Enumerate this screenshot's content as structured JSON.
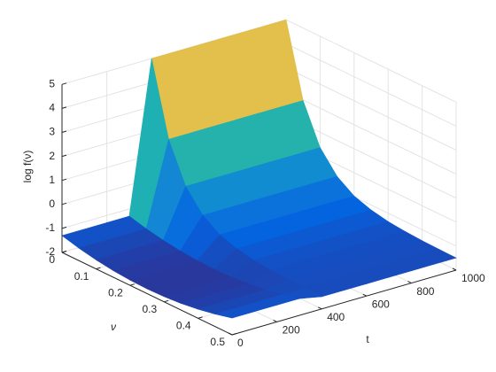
{
  "chart_data": {
    "type": "surface",
    "xlabel": "t",
    "ylabel": "ν",
    "zlabel": "log f(ν)",
    "x": [
      0,
      100,
      200,
      300,
      400,
      500,
      600,
      700,
      800,
      900,
      1000
    ],
    "y": [
      0,
      0.05,
      0.1,
      0.15,
      0.2,
      0.25,
      0.3,
      0.35,
      0.4,
      0.45,
      0.5
    ],
    "z": [
      [
        -1.3,
        -1.48,
        -1.62,
        -1.72,
        -1.78,
        -1.8,
        -1.78,
        -1.72,
        -1.62,
        -1.48,
        -1.3
      ],
      [
        -1.3,
        -1.48,
        -1.62,
        -1.72,
        -1.78,
        -1.8,
        -1.78,
        -1.72,
        -1.62,
        -1.48,
        -1.3
      ],
      [
        -1.3,
        -1.48,
        -1.62,
        -1.72,
        -1.78,
        -1.8,
        -1.78,
        -1.72,
        -1.62,
        -1.48,
        -1.3
      ],
      [
        -1.3,
        -1.48,
        -1.62,
        -1.72,
        -1.78,
        -1.8,
        -1.78,
        -1.72,
        -1.62,
        -1.48,
        -1.3
      ],
      [
        5,
        1.98,
        0.36,
        -0.5,
        -0.97,
        -1.21,
        -1.35,
        -1.42,
        -1.46,
        -1.48,
        -1.49
      ],
      [
        5,
        1.98,
        0.36,
        -0.5,
        -0.97,
        -1.21,
        -1.35,
        -1.42,
        -1.46,
        -1.48,
        -1.49
      ],
      [
        5,
        1.98,
        0.36,
        -0.5,
        -0.97,
        -1.21,
        -1.35,
        -1.42,
        -1.46,
        -1.48,
        -1.49
      ],
      [
        5,
        1.98,
        0.36,
        -0.5,
        -0.97,
        -1.21,
        -1.35,
        -1.42,
        -1.46,
        -1.48,
        -1.49
      ],
      [
        5,
        1.98,
        0.36,
        -0.5,
        -0.97,
        -1.21,
        -1.35,
        -1.42,
        -1.46,
        -1.48,
        -1.49
      ],
      [
        5,
        1.98,
        0.36,
        -0.5,
        -0.97,
        -1.21,
        -1.35,
        -1.42,
        -1.46,
        -1.48,
        -1.49
      ],
      [
        5,
        1.98,
        0.36,
        -0.5,
        -0.97,
        -1.21,
        -1.35,
        -1.42,
        -1.46,
        -1.48,
        -1.49
      ]
    ],
    "xlim": [
      0,
      1000
    ],
    "xticks": [
      0,
      200,
      400,
      600,
      800,
      1000
    ],
    "ylim": [
      0,
      0.5
    ],
    "yticks": [
      0,
      0.1,
      0.2,
      0.3,
      0.4,
      0.5
    ],
    "zlim": [
      -2,
      5
    ],
    "zticks": [
      -2,
      -1,
      0,
      1,
      2,
      3,
      4,
      5
    ],
    "grid": true,
    "colormap": [
      "#352a87",
      "#0363e1",
      "#1485d4",
      "#06a7c6",
      "#38b99e",
      "#92bf73",
      "#d9ba56",
      "#fcce2e",
      "#f9fb0e"
    ]
  }
}
